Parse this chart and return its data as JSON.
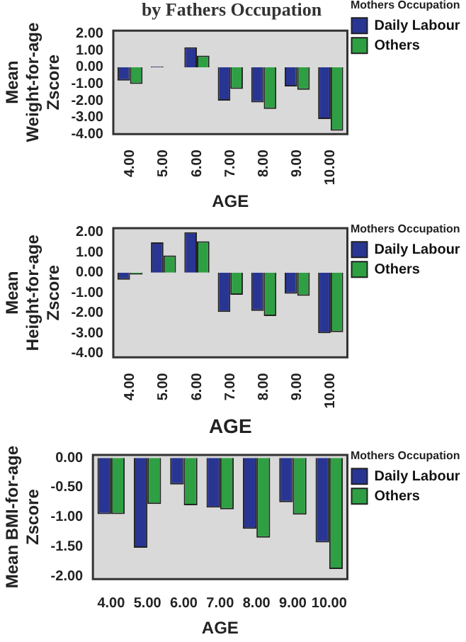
{
  "chart_data": [
    {
      "type": "bar",
      "title": "by Fathers Occupation",
      "xlabel": "AGE",
      "ylabel": "Mean Weight-for-age Zscore",
      "legend_title": "Mothers Occupation",
      "legend": "right",
      "categories": [
        "4.00",
        "5.00",
        "6.00",
        "7.00",
        "8.00",
        "9.00",
        "10.00"
      ],
      "series": [
        {
          "name": "Daily Labour",
          "color": "#283593",
          "values": [
            -0.8,
            0.05,
            1.2,
            -2.0,
            -2.1,
            -1.15,
            -3.1
          ]
        },
        {
          "name": "Others",
          "color": "#2ea043",
          "values": [
            -1.0,
            0.0,
            0.7,
            -1.3,
            -2.5,
            -1.35,
            -3.8
          ]
        }
      ],
      "ylim": [
        -4,
        2.2
      ],
      "yticks": [
        {
          "value": -4,
          "label": "-4.00"
        },
        {
          "value": -3,
          "label": "-3.00"
        },
        {
          "value": -2,
          "label": "-2.00"
        },
        {
          "value": -1,
          "label": "-1.00"
        },
        {
          "value": 0,
          "label": "0.00"
        },
        {
          "value": 1,
          "label": "1.00"
        },
        {
          "value": 2,
          "label": "2.00"
        }
      ]
    },
    {
      "type": "bar",
      "xlabel": "AGE",
      "ylabel": "Mean Height-for-age Zscore",
      "legend_title": "Mothers Occupation",
      "legend": "right",
      "categories": [
        "4.00",
        "5.00",
        "6.00",
        "7.00",
        "8.00",
        "9.00",
        "10.00"
      ],
      "series": [
        {
          "name": "Daily Labour",
          "color": "#283593",
          "values": [
            -0.35,
            1.5,
            2.0,
            -1.95,
            -1.9,
            -1.05,
            -3.0
          ]
        },
        {
          "name": "Others",
          "color": "#2ea043",
          "values": [
            -0.1,
            0.85,
            1.55,
            -1.1,
            -2.15,
            -1.15,
            -2.95
          ]
        }
      ],
      "ylim": [
        -4.2,
        2.2
      ],
      "yticks": [
        {
          "value": -4,
          "label": "-4.00"
        },
        {
          "value": -3,
          "label": "-3.00"
        },
        {
          "value": -2,
          "label": "-2.00"
        },
        {
          "value": -1,
          "label": "-1.00"
        },
        {
          "value": 0,
          "label": "0.00"
        },
        {
          "value": 1,
          "label": "1.00"
        },
        {
          "value": 2,
          "label": "2.00"
        }
      ]
    },
    {
      "type": "bar",
      "xlabel": "AGE",
      "ylabel": "Mean BMI-for-age Zscore",
      "legend_title": "Mothers Occupation",
      "legend": "right",
      "categories": [
        "4.00",
        "5.00",
        "6.00",
        "7.00",
        "8.00",
        "9.00",
        "10.00"
      ],
      "series": [
        {
          "name": "Daily Labour",
          "color": "#283593",
          "values": [
            -0.95,
            -1.52,
            -0.45,
            -0.84,
            -1.2,
            -0.75,
            -1.43
          ]
        },
        {
          "name": "Others",
          "color": "#2ea043",
          "values": [
            -0.95,
            -0.78,
            -0.8,
            -0.87,
            -1.35,
            -0.96,
            -1.88
          ]
        }
      ],
      "ylim": [
        -2.05,
        0.05
      ],
      "yticks": [
        {
          "value": -2,
          "label": "-2.00"
        },
        {
          "value": -1.5,
          "label": "-1.50"
        },
        {
          "value": -1,
          "label": "-1.00"
        },
        {
          "value": -0.5,
          "label": "-0.50"
        },
        {
          "value": 0,
          "label": "0.00"
        }
      ]
    }
  ]
}
